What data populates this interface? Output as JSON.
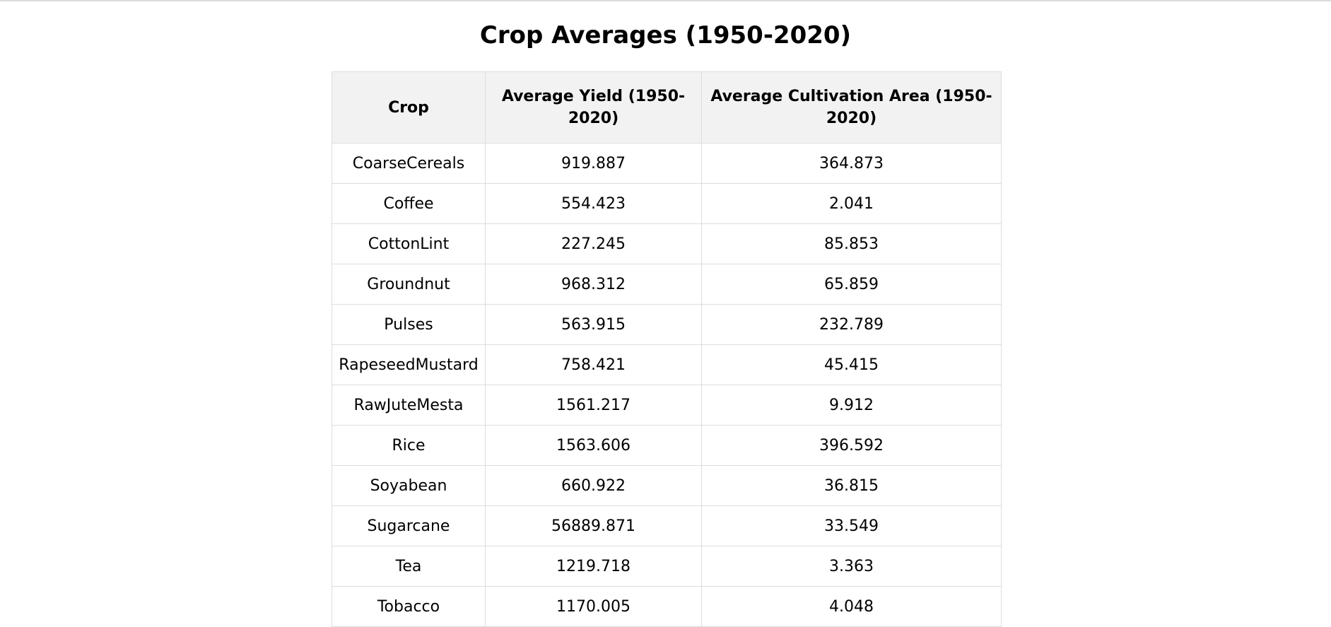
{
  "page": {
    "title": "Crop Averages (1950-2020)"
  },
  "table": {
    "headers": [
      "Crop",
      "Average Yield (1950-2020)",
      "Average Cultivation Area (1950-2020)"
    ],
    "rows": [
      [
        "CoarseCereals",
        "919.887",
        "364.873"
      ],
      [
        "Coffee",
        "554.423",
        "2.041"
      ],
      [
        "CottonLint",
        "227.245",
        "85.853"
      ],
      [
        "Groundnut",
        "968.312",
        "65.859"
      ],
      [
        "Pulses",
        "563.915",
        "232.789"
      ],
      [
        "RapeseedMustard",
        "758.421",
        "45.415"
      ],
      [
        "RawJuteMesta",
        "1561.217",
        "9.912"
      ],
      [
        "Rice",
        "1563.606",
        "396.592"
      ],
      [
        "Soyabean",
        "660.922",
        "36.815"
      ],
      [
        "Sugarcane",
        "56889.871",
        "33.549"
      ],
      [
        "Tea",
        "1219.718",
        "3.363"
      ],
      [
        "Tobacco",
        "1170.005",
        "4.048"
      ]
    ]
  }
}
